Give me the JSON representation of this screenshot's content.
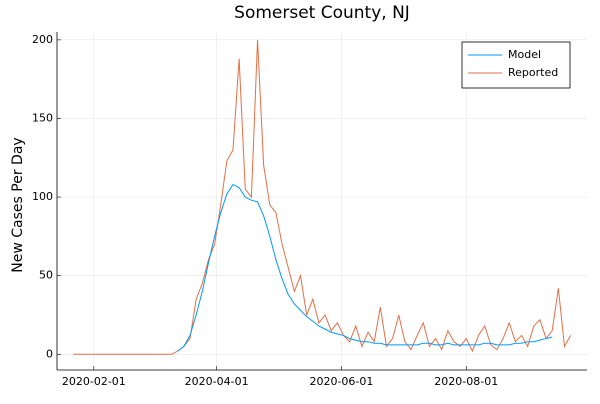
{
  "chart_data": {
    "type": "line",
    "title": "Somerset County, NJ",
    "y_label": "New Cases Per Day",
    "x": [
      "2020-01-22",
      "2020-01-25",
      "2020-01-28",
      "2020-01-31",
      "2020-02-03",
      "2020-02-06",
      "2020-02-09",
      "2020-02-12",
      "2020-02-15",
      "2020-02-18",
      "2020-02-21",
      "2020-02-24",
      "2020-02-27",
      "2020-03-01",
      "2020-03-04",
      "2020-03-07",
      "2020-03-10",
      "2020-03-13",
      "2020-03-16",
      "2020-03-19",
      "2020-03-22",
      "2020-03-25",
      "2020-03-28",
      "2020-03-31",
      "2020-04-03",
      "2020-04-06",
      "2020-04-09",
      "2020-04-12",
      "2020-04-15",
      "2020-04-18",
      "2020-04-21",
      "2020-04-24",
      "2020-04-27",
      "2020-04-30",
      "2020-05-03",
      "2020-05-06",
      "2020-05-09",
      "2020-05-12",
      "2020-05-15",
      "2020-05-18",
      "2020-05-21",
      "2020-05-24",
      "2020-05-27",
      "2020-05-30",
      "2020-06-02",
      "2020-06-05",
      "2020-06-08",
      "2020-06-11",
      "2020-06-14",
      "2020-06-17",
      "2020-06-20",
      "2020-06-23",
      "2020-06-26",
      "2020-06-29",
      "2020-07-02",
      "2020-07-05",
      "2020-07-08",
      "2020-07-11",
      "2020-07-14",
      "2020-07-17",
      "2020-07-20",
      "2020-07-23",
      "2020-07-26",
      "2020-07-29",
      "2020-08-01",
      "2020-08-04",
      "2020-08-07",
      "2020-08-10",
      "2020-08-13",
      "2020-08-16",
      "2020-08-19",
      "2020-08-22",
      "2020-08-25",
      "2020-08-28",
      "2020-08-31",
      "2020-09-03",
      "2020-09-06",
      "2020-09-09",
      "2020-09-12",
      "2020-09-15",
      "2020-09-18",
      "2020-09-21"
    ],
    "series": [
      {
        "name": "Model",
        "color": "#009af9",
        "values": [
          null,
          null,
          null,
          null,
          null,
          null,
          null,
          null,
          null,
          null,
          null,
          null,
          null,
          null,
          null,
          null,
          null,
          2,
          5,
          12,
          25,
          40,
          58,
          75,
          90,
          102,
          108,
          106,
          100,
          98,
          97,
          88,
          75,
          60,
          48,
          38,
          32,
          28,
          24,
          21,
          18,
          16,
          14,
          13,
          12,
          10,
          9,
          8,
          8,
          7,
          7,
          6,
          6,
          6,
          6,
          6,
          6,
          7,
          7,
          6,
          6,
          7,
          6,
          6,
          6,
          6,
          6,
          7,
          7,
          6,
          6,
          6,
          7,
          7,
          8,
          8,
          9,
          10,
          11,
          null,
          null,
          null
        ]
      },
      {
        "name": "Reported",
        "color": "#e26f46",
        "values": [
          0,
          0,
          0,
          0,
          0,
          0,
          0,
          0,
          0,
          0,
          0,
          0,
          0,
          0,
          0,
          0,
          0,
          2,
          5,
          10,
          35,
          45,
          60,
          70,
          95,
          123,
          130,
          188,
          105,
          100,
          200,
          120,
          95,
          90,
          70,
          55,
          40,
          50,
          25,
          35,
          20,
          25,
          15,
          20,
          12,
          8,
          18,
          5,
          14,
          8,
          30,
          5,
          10,
          25,
          8,
          3,
          12,
          20,
          5,
          10,
          3,
          15,
          8,
          5,
          10,
          2,
          12,
          18,
          6,
          3,
          10,
          20,
          8,
          12,
          5,
          18,
          22,
          10,
          15,
          42,
          5,
          12
        ]
      }
    ],
    "xlim": [
      "2020-01-14",
      "2020-09-29"
    ],
    "xticks": [
      "2020-02-01",
      "2020-04-01",
      "2020-06-01",
      "2020-08-01"
    ],
    "ylim": [
      -10,
      205
    ],
    "yticks": [
      0,
      50,
      100,
      150,
      200
    ],
    "grid": true,
    "legend": "top-right"
  }
}
